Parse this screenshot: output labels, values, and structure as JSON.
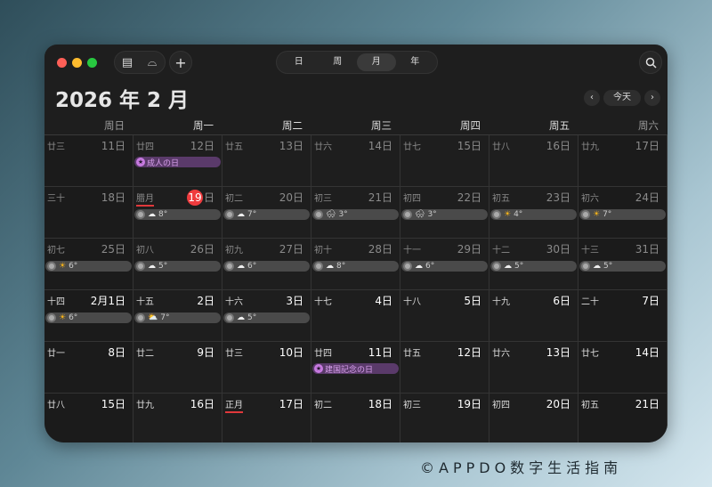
{
  "toolbar": {
    "view_tabs": [
      {
        "label": "日"
      },
      {
        "label": "周"
      },
      {
        "label": "月",
        "selected": true
      },
      {
        "label": "年"
      }
    ],
    "icons": [
      "calendar-list-icon",
      "inbox-icon",
      "plus-icon",
      "search-icon"
    ]
  },
  "header": {
    "title": "2026 年 2 月",
    "today_label": "今天",
    "prev": "‹",
    "next": "›"
  },
  "weekdays": [
    "周日",
    "周一",
    "周二",
    "周三",
    "周四",
    "周五",
    "周六"
  ],
  "colors": {
    "today": "#ef3b3e",
    "event": "#c77ae0",
    "accent_underline": "#e0383b"
  },
  "weeks": [
    [
      {
        "lunar": "廿三",
        "day": "11日",
        "dim": true
      },
      {
        "lunar": "廿四",
        "day": "12日",
        "dim": true,
        "event": "成人の日"
      },
      {
        "lunar": "廿五",
        "day": "13日",
        "dim": true
      },
      {
        "lunar": "廿六",
        "day": "14日",
        "dim": true
      },
      {
        "lunar": "廿七",
        "day": "15日",
        "dim": true
      },
      {
        "lunar": "廿八",
        "day": "16日",
        "dim": true
      },
      {
        "lunar": "廿九",
        "day": "17日",
        "dim": true
      }
    ],
    [
      {
        "lunar": "三十",
        "day": "18日",
        "dim": true
      },
      {
        "lunar": "腊月",
        "day": "日",
        "today": "19",
        "dim": true,
        "underline": true,
        "weather": {
          "icon": "cloud",
          "temp": "8°"
        }
      },
      {
        "lunar": "初二",
        "day": "20日",
        "dim": true,
        "weather": {
          "icon": "cloud",
          "temp": "7°"
        }
      },
      {
        "lunar": "初三",
        "day": "21日",
        "dim": true,
        "weather": {
          "icon": "snow-cloud",
          "temp": "3°"
        }
      },
      {
        "lunar": "初四",
        "day": "22日",
        "dim": true,
        "weather": {
          "icon": "snow-cloud",
          "temp": "3°"
        }
      },
      {
        "lunar": "初五",
        "day": "23日",
        "dim": true,
        "weather": {
          "icon": "sun",
          "temp": "4°"
        }
      },
      {
        "lunar": "初六",
        "day": "24日",
        "dim": true,
        "weather": {
          "icon": "sun",
          "temp": "7°"
        }
      }
    ],
    [
      {
        "lunar": "初七",
        "day": "25日",
        "dim": true,
        "weather": {
          "icon": "sun",
          "temp": "6°"
        }
      },
      {
        "lunar": "初八",
        "day": "26日",
        "dim": true,
        "weather": {
          "icon": "cloud",
          "temp": "5°"
        }
      },
      {
        "lunar": "初九",
        "day": "27日",
        "dim": true,
        "weather": {
          "icon": "cloud",
          "temp": "6°"
        }
      },
      {
        "lunar": "初十",
        "day": "28日",
        "dim": true,
        "weather": {
          "icon": "cloud",
          "temp": "8°"
        }
      },
      {
        "lunar": "十一",
        "day": "29日",
        "dim": true,
        "weather": {
          "icon": "cloud",
          "temp": "6°"
        }
      },
      {
        "lunar": "十二",
        "day": "30日",
        "dim": true,
        "weather": {
          "icon": "cloud",
          "temp": "5°"
        }
      },
      {
        "lunar": "十三",
        "day": "31日",
        "dim": true,
        "weather": {
          "icon": "cloud",
          "temp": "5°"
        }
      }
    ],
    [
      {
        "lunar": "十四",
        "day": "2月1日",
        "weather": {
          "icon": "sun",
          "temp": "6°"
        }
      },
      {
        "lunar": "十五",
        "day": "2日",
        "weather": {
          "icon": "sun-cloud",
          "temp": "7°"
        }
      },
      {
        "lunar": "十六",
        "day": "3日",
        "weather": {
          "icon": "cloud",
          "temp": "5°"
        }
      },
      {
        "lunar": "十七",
        "day": "4日"
      },
      {
        "lunar": "十八",
        "day": "5日"
      },
      {
        "lunar": "十九",
        "day": "6日"
      },
      {
        "lunar": "二十",
        "day": "7日"
      }
    ],
    [
      {
        "lunar": "廿一",
        "day": "8日"
      },
      {
        "lunar": "廿二",
        "day": "9日"
      },
      {
        "lunar": "廿三",
        "day": "10日"
      },
      {
        "lunar": "廿四",
        "day": "11日",
        "event": "建国記念の日"
      },
      {
        "lunar": "廿五",
        "day": "12日"
      },
      {
        "lunar": "廿六",
        "day": "13日"
      },
      {
        "lunar": "廿七",
        "day": "14日"
      }
    ],
    [
      {
        "lunar": "廿八",
        "day": "15日"
      },
      {
        "lunar": "廿九",
        "day": "16日"
      },
      {
        "lunar": "正月",
        "day": "17日",
        "underline": true
      },
      {
        "lunar": "初二",
        "day": "18日"
      },
      {
        "lunar": "初三",
        "day": "19日"
      },
      {
        "lunar": "初四",
        "day": "20日"
      },
      {
        "lunar": "初五",
        "day": "21日"
      }
    ]
  ],
  "footer": "©APPDO数字生活指南"
}
